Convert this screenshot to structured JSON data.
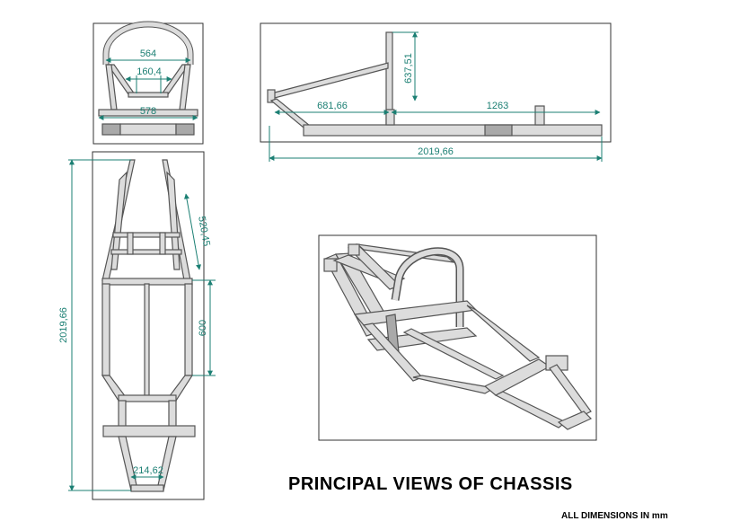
{
  "title": "PRINCIPAL VIEWS OF CHASSIS",
  "note": "ALL DIMENSIONS IN mm",
  "front_view": {
    "dims": [
      "564",
      "160,4",
      "578"
    ]
  },
  "side_view": {
    "dims": [
      "637,51",
      "681,66",
      "1263",
      "2019,66"
    ]
  },
  "top_view": {
    "dims": [
      "2019,66",
      "520,45",
      "600",
      "214,62"
    ]
  },
  "colors": {
    "dimension": "#1b7f73",
    "tube_light": "#dcdcdc",
    "tube_dark": "#a9a9a9",
    "frame": "#333333"
  }
}
